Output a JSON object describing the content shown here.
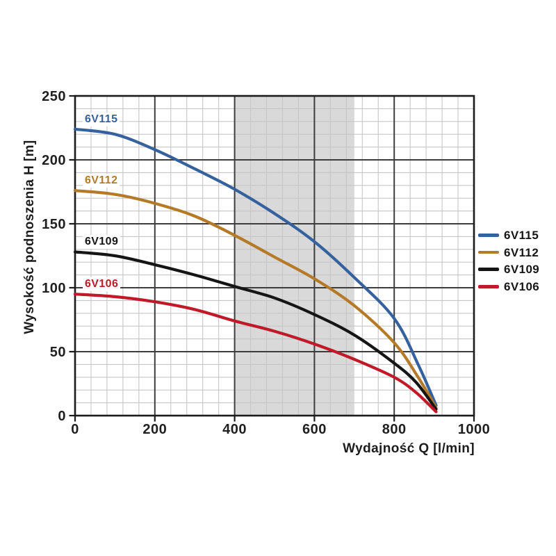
{
  "chart_data": {
    "type": "line",
    "title": "",
    "xlabel": "Wydajność Q [l/min]",
    "ylabel": "Wysokość podnoszenia H [m]",
    "xlim": [
      0,
      1000
    ],
    "ylim": [
      0,
      250
    ],
    "x_tick_labels": [
      "0",
      "200",
      "400",
      "600",
      "800",
      "1000"
    ],
    "y_tick_labels": [
      "0",
      "50",
      "100",
      "150",
      "200",
      "250"
    ],
    "x_major_step": 200,
    "x_minor_step": 40,
    "y_major_step": 50,
    "y_minor_step": 10,
    "grid": "major and minor gridlines on",
    "legend_position": "outside right, vertically centered",
    "shaded_band": {
      "x_from": 400,
      "x_to": 700,
      "color": "#d9d9d9"
    },
    "series": [
      {
        "name": "6V115",
        "color": "#35619e",
        "points": [
          [
            0,
            224
          ],
          [
            100,
            220
          ],
          [
            200,
            208
          ],
          [
            300,
            193
          ],
          [
            400,
            177
          ],
          [
            500,
            158
          ],
          [
            600,
            136
          ],
          [
            700,
            108
          ],
          [
            800,
            76
          ],
          [
            860,
            40
          ],
          [
            905,
            8
          ]
        ]
      },
      {
        "name": "6V112",
        "color": "#b57a28",
        "points": [
          [
            0,
            176
          ],
          [
            100,
            173
          ],
          [
            200,
            166
          ],
          [
            300,
            156
          ],
          [
            400,
            141
          ],
          [
            500,
            124
          ],
          [
            600,
            107
          ],
          [
            700,
            86
          ],
          [
            800,
            57
          ],
          [
            860,
            30
          ],
          [
            905,
            6
          ]
        ]
      },
      {
        "name": "6V109",
        "color": "#151515",
        "points": [
          [
            0,
            128
          ],
          [
            100,
            125
          ],
          [
            200,
            118
          ],
          [
            300,
            110
          ],
          [
            400,
            101
          ],
          [
            500,
            92
          ],
          [
            600,
            79
          ],
          [
            700,
            63
          ],
          [
            800,
            41
          ],
          [
            855,
            26
          ],
          [
            905,
            5
          ]
        ]
      },
      {
        "name": "6V106",
        "color": "#c01a28",
        "points": [
          [
            0,
            95
          ],
          [
            100,
            93
          ],
          [
            200,
            89
          ],
          [
            300,
            83
          ],
          [
            400,
            74
          ],
          [
            500,
            66
          ],
          [
            600,
            56
          ],
          [
            700,
            44
          ],
          [
            800,
            30
          ],
          [
            855,
            18
          ],
          [
            905,
            3
          ]
        ]
      }
    ]
  },
  "legend": {
    "items": [
      {
        "label": "6V115",
        "color": "#35619e"
      },
      {
        "label": "6V112",
        "color": "#b57a28"
      },
      {
        "label": "6V109",
        "color": "#151515"
      },
      {
        "label": "6V106",
        "color": "#c01a28"
      }
    ]
  },
  "colors": {
    "background": "#ffffff",
    "frame": "#1b1b1b",
    "major_grid": "#3c3c3c",
    "minor_grid": "#c6c6c6",
    "tick_text": "#1f1f1f",
    "band": "#d9d9d9"
  }
}
